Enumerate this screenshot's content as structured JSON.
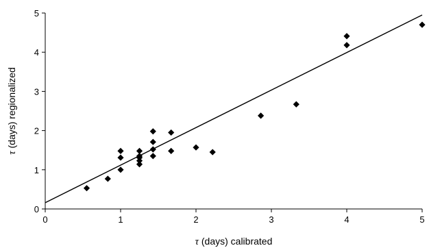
{
  "chart_data": {
    "type": "scatter",
    "xlabel": {
      "symbol": "τ",
      "text": " (days) calibrated"
    },
    "ylabel": {
      "symbol": "τ",
      "text": " (days) regionalized"
    },
    "xlim": [
      0,
      5
    ],
    "ylim": [
      0,
      5
    ],
    "xticks": [
      "0",
      "1",
      "2",
      "3",
      "4",
      "5"
    ],
    "yticks": [
      "0",
      "1",
      "2",
      "3",
      "4",
      "5"
    ],
    "grid": false,
    "legend": "none",
    "marker": "diamond",
    "marker_color": "#000000",
    "points": [
      {
        "x": 0.55,
        "y": 0.53
      },
      {
        "x": 0.83,
        "y": 0.77
      },
      {
        "x": 1.0,
        "y": 1.48
      },
      {
        "x": 1.0,
        "y": 1.31
      },
      {
        "x": 1.0,
        "y": 1.0
      },
      {
        "x": 1.25,
        "y": 1.48
      },
      {
        "x": 1.25,
        "y": 1.35
      },
      {
        "x": 1.25,
        "y": 1.31
      },
      {
        "x": 1.25,
        "y": 1.23
      },
      {
        "x": 1.25,
        "y": 1.14
      },
      {
        "x": 1.43,
        "y": 1.98
      },
      {
        "x": 1.43,
        "y": 1.71
      },
      {
        "x": 1.43,
        "y": 1.52
      },
      {
        "x": 1.43,
        "y": 1.35
      },
      {
        "x": 1.67,
        "y": 1.95
      },
      {
        "x": 1.67,
        "y": 1.48
      },
      {
        "x": 2.0,
        "y": 1.57
      },
      {
        "x": 2.22,
        "y": 1.45
      },
      {
        "x": 2.86,
        "y": 2.38
      },
      {
        "x": 3.33,
        "y": 2.67
      },
      {
        "x": 4.0,
        "y": 4.41
      },
      {
        "x": 4.0,
        "y": 4.18
      },
      {
        "x": 5.0,
        "y": 4.7
      }
    ],
    "trendline": {
      "x": [
        0,
        5
      ],
      "y": [
        0.16,
        4.95
      ]
    }
  }
}
